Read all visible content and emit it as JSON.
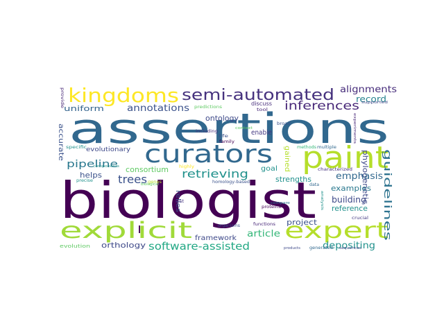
{
  "cloud": {
    "words": [
      {
        "text": "biologist",
        "color": "#440154"
      },
      {
        "text": "assertions",
        "color": "#31688e"
      },
      {
        "text": "curators",
        "color": "#31688e"
      },
      {
        "text": "paint",
        "color": "#b5de2b"
      },
      {
        "text": "explicit",
        "color": "#a0da39"
      },
      {
        "text": "expert",
        "color": "#b5de2b"
      },
      {
        "text": "kingdoms",
        "color": "#fde725"
      },
      {
        "text": "semi-automated",
        "color": "#46327e"
      },
      {
        "text": "inferences",
        "color": "#482878"
      },
      {
        "text": "alignments",
        "color": "#472d7b"
      },
      {
        "text": "ontology",
        "color": "#3e4989"
      },
      {
        "text": "annotations",
        "color": "#3b528b"
      },
      {
        "text": "uniform",
        "color": "#33638d"
      },
      {
        "text": "record",
        "color": "#26828e"
      },
      {
        "text": "guidelines",
        "color": "#2c728e"
      },
      {
        "text": "phylogenetic",
        "color": "#3e4989"
      },
      {
        "text": "pipeline",
        "color": "#2a788e"
      },
      {
        "text": "retrieving",
        "color": "#21918c"
      },
      {
        "text": "trees",
        "color": "#3b528b"
      },
      {
        "text": "consortium",
        "color": "#5ec962"
      },
      {
        "text": "evolutionary",
        "color": "#3e4989"
      },
      {
        "text": "accurate",
        "color": "#3b528b"
      },
      {
        "text": "helps",
        "color": "#3b528b"
      },
      {
        "text": "goal",
        "color": "#21918c"
      },
      {
        "text": "gained",
        "color": "#b5de2b"
      },
      {
        "text": "strengths",
        "color": "#21918c"
      },
      {
        "text": "emphasis",
        "color": "#31688e"
      },
      {
        "text": "examples",
        "color": "#2a788e"
      },
      {
        "text": "building",
        "color": "#3e4989"
      },
      {
        "text": "reference",
        "color": "#21918c"
      },
      {
        "text": "relies",
        "color": "#3b528b"
      },
      {
        "text": "enable",
        "color": "#443983"
      },
      {
        "text": "article",
        "color": "#35b779"
      },
      {
        "text": "project",
        "color": "#3b528b"
      },
      {
        "text": "framework",
        "color": "#3e4989"
      },
      {
        "text": "depositing",
        "color": "#21918c"
      },
      {
        "text": "software-assisted",
        "color": "#22a884"
      },
      {
        "text": "orthology",
        "color": "#3e4989"
      },
      {
        "text": "l",
        "color": "#440154"
      },
      {
        "text": "discuss",
        "color": "#472d7b"
      },
      {
        "text": "tool",
        "color": "#482878"
      },
      {
        "text": "predictions",
        "color": "#5ec962"
      },
      {
        "text": "provide",
        "color": "#482878"
      },
      {
        "text": "broad",
        "color": "#3b528b"
      },
      {
        "text": "life",
        "color": "#3b528b"
      },
      {
        "text": "family",
        "color": "#440154"
      },
      {
        "text": "including",
        "color": "#46327e"
      },
      {
        "text": "context",
        "color": "#5ec962"
      },
      {
        "text": "methods",
        "color": "#35b779"
      },
      {
        "text": "multiple",
        "color": "#31688e"
      },
      {
        "text": "experiments",
        "color": "#482878"
      },
      {
        "text": "supported",
        "color": "#3e4989"
      },
      {
        "text": "specific",
        "color": "#21918c"
      },
      {
        "text": "components",
        "color": "#21918c"
      },
      {
        "text": "highly",
        "color": "#fde725"
      },
      {
        "text": "characterized",
        "color": "#46327e"
      },
      {
        "text": "precise",
        "color": "#21918c"
      },
      {
        "text": "genes",
        "color": "#b5de2b"
      },
      {
        "text": "homology-based",
        "color": "#3b528b"
      },
      {
        "text": "data",
        "color": "#31688e"
      },
      {
        "text": "compare",
        "color": "#2a788e"
      },
      {
        "text": "proteins",
        "color": "#440154"
      },
      {
        "text": "crucial",
        "color": "#443983"
      },
      {
        "text": "analysis",
        "color": "#21918c"
      },
      {
        "text": "organisms",
        "color": "#3b528b"
      },
      {
        "text": "functions",
        "color": "#482878"
      },
      {
        "text": "evolution",
        "color": "#5ec962"
      },
      {
        "text": "products",
        "color": "#3e4989"
      },
      {
        "text": "generated",
        "color": "#31688e"
      },
      {
        "text": "sequences",
        "color": "#3e4989"
      },
      {
        "text": "lost",
        "color": "#46327e"
      },
      {
        "text": "biological",
        "color": "#5ec962"
      }
    ]
  }
}
